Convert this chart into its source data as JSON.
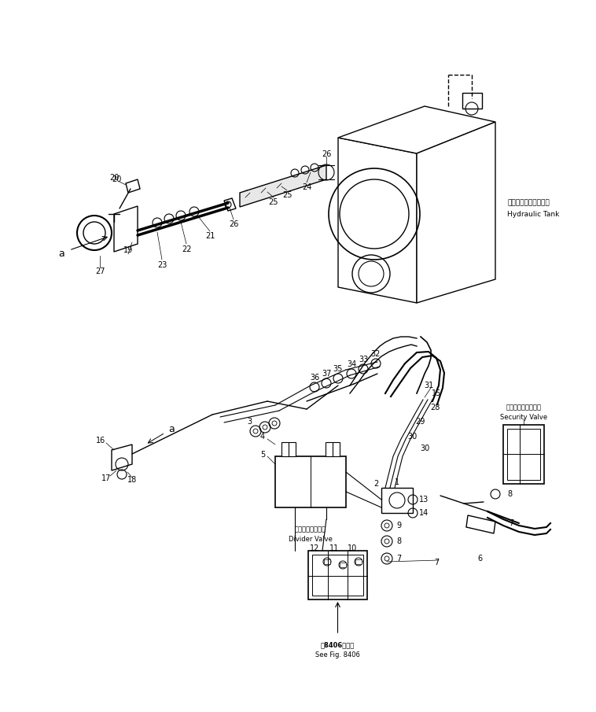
{
  "bg_color": "#ffffff",
  "lc": "#000000",
  "lw": 0.8,
  "fig_width": 7.58,
  "fig_height": 9.05,
  "dpi": 100,
  "hydraulic_tank_jp": "ハイドロリックタンク",
  "hydraulic_tank_en": "Hydraulic Tank",
  "security_valve_jp": "セキュリティバルブ",
  "security_valve_en": "Security Valve",
  "divider_valve_jp": "ディバイダバルブ",
  "divider_valve_en": "Divider Valve",
  "see_fig_jp": "囶8406図参照",
  "see_fig_en": "See Fig. 8406"
}
